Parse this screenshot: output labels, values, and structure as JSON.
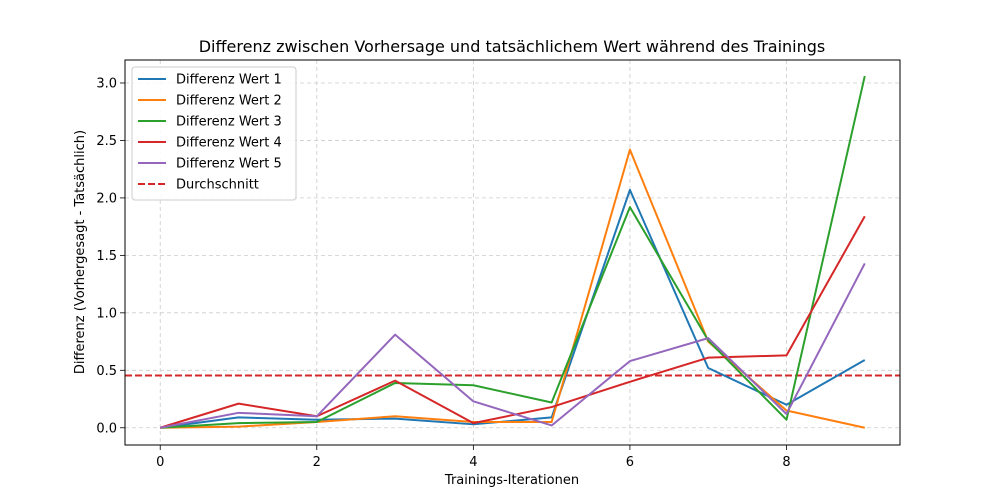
{
  "chart_data": {
    "type": "line",
    "title": "Differenz zwischen Vorhersage und tatsächlichem Wert während des Trainings",
    "xlabel": "Trainings-Iterationen",
    "ylabel": "Differenz (Vorhergesagt - Tatsächlich)",
    "xlim": [
      -0.45,
      9.45
    ],
    "ylim": [
      -0.15,
      3.2
    ],
    "xticks": [
      0,
      2,
      4,
      6,
      8
    ],
    "xtick_labels": [
      "0",
      "2",
      "4",
      "6",
      "8"
    ],
    "yticks": [
      0.0,
      0.5,
      1.0,
      1.5,
      2.0,
      2.5,
      3.0
    ],
    "ytick_labels": [
      "0.0",
      "0.5",
      "1.0",
      "1.5",
      "2.0",
      "2.5",
      "3.0"
    ],
    "grid": true,
    "legend_position": "top-left",
    "x": [
      0,
      1,
      2,
      3,
      4,
      5,
      6,
      7,
      8,
      9
    ],
    "series": [
      {
        "name": "Differenz Wert 1",
        "color": "#1f77b4",
        "values": [
          0.0,
          0.09,
          0.07,
          0.08,
          0.03,
          0.09,
          2.07,
          0.52,
          0.2,
          0.59
        ]
      },
      {
        "name": "Differenz Wert 2",
        "color": "#ff7f0e",
        "values": [
          0.0,
          0.01,
          0.05,
          0.1,
          0.05,
          0.05,
          2.42,
          0.75,
          0.15,
          0.0
        ]
      },
      {
        "name": "Differenz Wert 3",
        "color": "#2ca02c",
        "values": [
          0.0,
          0.04,
          0.05,
          0.39,
          0.37,
          0.22,
          1.92,
          0.76,
          0.07,
          3.06
        ]
      },
      {
        "name": "Differenz Wert 4",
        "color": "#d62728",
        "values": [
          0.0,
          0.21,
          0.1,
          0.41,
          0.04,
          0.18,
          0.4,
          0.61,
          0.63,
          1.84
        ]
      },
      {
        "name": "Differenz Wert 5",
        "color": "#9467bd",
        "values": [
          0.0,
          0.13,
          0.1,
          0.81,
          0.23,
          0.02,
          0.58,
          0.78,
          0.12,
          1.43
        ]
      }
    ],
    "reference_line": {
      "name": "Durchschnitt",
      "color": "#d62728",
      "style": "dashed",
      "value": 0.455
    }
  }
}
